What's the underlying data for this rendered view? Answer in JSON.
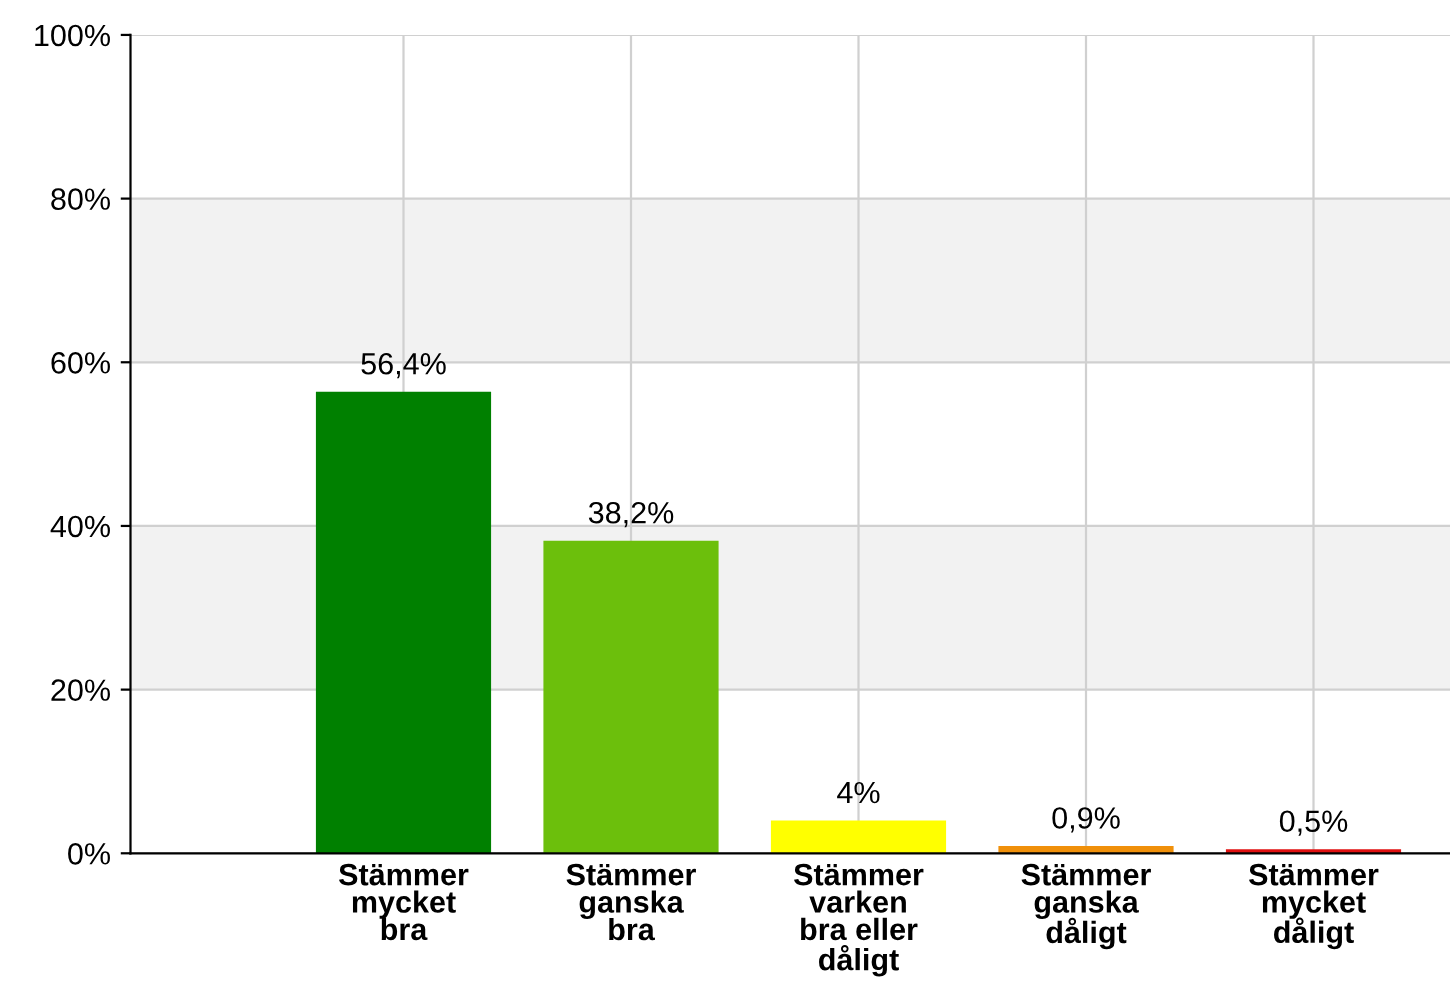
{
  "chart_data": {
    "type": "bar",
    "categories": [
      "Stämmer\nmycket\nbra",
      "Stämmer\nganska\nbra",
      "Stämmer\nvarken\nbra eller\ndåligt",
      "Stämmer\nganska\ndåligt",
      "Stämmer\nmycket\ndåligt"
    ],
    "values": [
      56.4,
      38.2,
      4,
      0.9,
      0.5
    ],
    "colors": [
      "#008000",
      "#6cbf0c",
      "#ffff00",
      "#f0900a",
      "#e01010"
    ],
    "value_labels": [
      "56,4%",
      "38,2%",
      "4%",
      "0,9%",
      "0,5%"
    ],
    "ylim": [
      0,
      100
    ],
    "yticks": [
      {
        "value": 0,
        "label": "0%"
      },
      {
        "value": 20,
        "label": "20%"
      },
      {
        "value": 40,
        "label": "40%"
      },
      {
        "value": 60,
        "label": "60%"
      },
      {
        "value": 80,
        "label": "80%"
      },
      {
        "value": 100,
        "label": "100%"
      }
    ],
    "bands": [
      {
        "axis": "y",
        "from": 20,
        "to": 40,
        "color": "#f2f2f2"
      },
      {
        "axis": "y",
        "from": 60,
        "to": 80,
        "color": "#f2f2f2"
      }
    ],
    "grid": true,
    "legend": false
  }
}
